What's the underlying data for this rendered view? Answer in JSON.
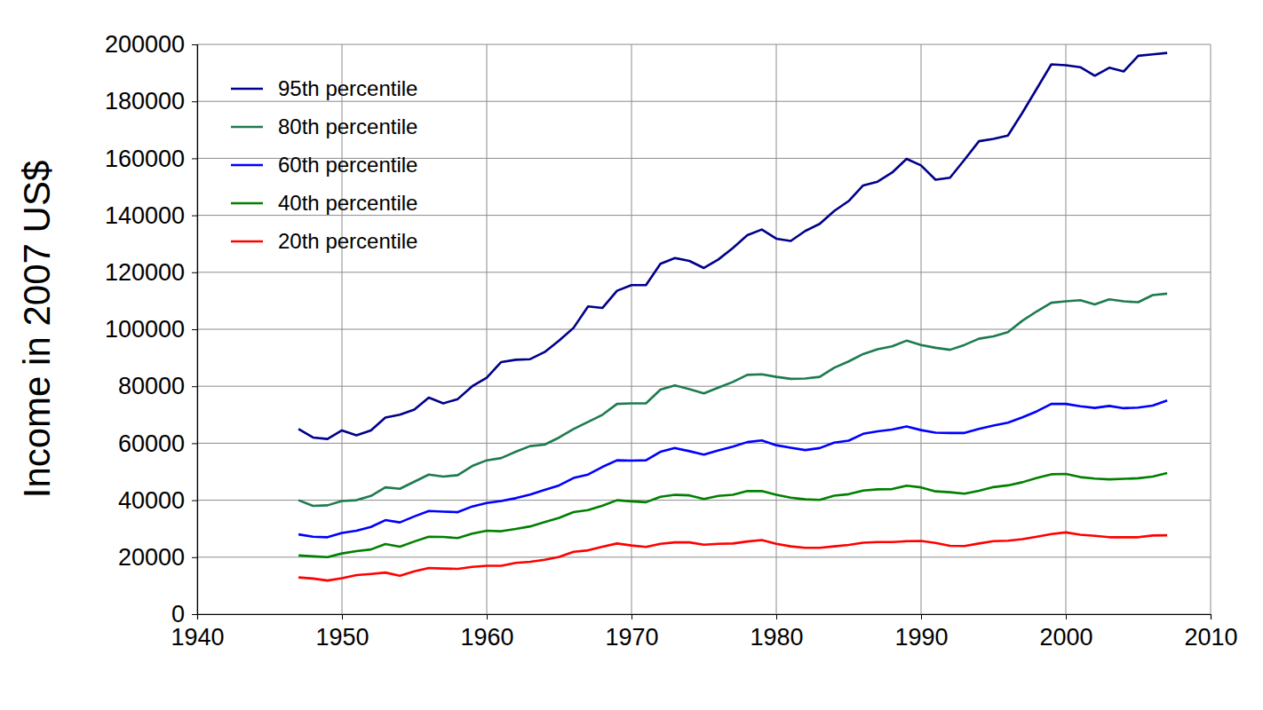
{
  "chart_data": {
    "type": "line",
    "y_label": "Income in 2007 US$",
    "x": [
      1947,
      1948,
      1949,
      1950,
      1951,
      1952,
      1953,
      1954,
      1955,
      1956,
      1957,
      1958,
      1959,
      1960,
      1961,
      1962,
      1963,
      1964,
      1965,
      1966,
      1967,
      1968,
      1969,
      1970,
      1971,
      1972,
      1973,
      1974,
      1975,
      1976,
      1977,
      1978,
      1979,
      1980,
      1981,
      1982,
      1983,
      1984,
      1985,
      1986,
      1987,
      1988,
      1989,
      1990,
      1991,
      1992,
      1993,
      1994,
      1995,
      1996,
      1997,
      1998,
      1999,
      2000,
      2001,
      2002,
      2003,
      2004,
      2005,
      2006,
      2007
    ],
    "series": [
      {
        "name": "95th percentile",
        "color": "#00008b",
        "values": [
          65000,
          62000,
          61500,
          64500,
          62800,
          64500,
          69000,
          70000,
          71800,
          76000,
          74000,
          75500,
          80000,
          83000,
          88500,
          89300,
          89500,
          92000,
          96000,
          100500,
          108000,
          107500,
          113500,
          115500,
          115500,
          123000,
          125000,
          124000,
          121500,
          124500,
          128500,
          133000,
          135000,
          131800,
          131000,
          134500,
          137000,
          141500,
          145000,
          150500,
          151800,
          155000,
          159800,
          157500,
          152500,
          153200,
          159500,
          166000,
          166800,
          168000,
          176000,
          184500,
          193000,
          192700,
          192000,
          189000,
          191800,
          190500,
          196000,
          196500,
          197000
        ]
      },
      {
        "name": "80th percentile",
        "color": "#1e7b4e",
        "values": [
          40000,
          38000,
          38200,
          39700,
          40000,
          41500,
          44500,
          44000,
          46500,
          49000,
          48300,
          48800,
          52000,
          54000,
          54800,
          57000,
          59000,
          59500,
          62000,
          65000,
          67500,
          70000,
          73800,
          74000,
          74000,
          78800,
          80300,
          79000,
          77500,
          79500,
          81500,
          84000,
          84200,
          83300,
          82600,
          82700,
          83300,
          86500,
          88700,
          91300,
          93000,
          94000,
          96000,
          94500,
          93500,
          92800,
          94500,
          96700,
          97500,
          99000,
          103000,
          106300,
          109300,
          109800,
          110200,
          108700,
          110500,
          109800,
          109500,
          112000,
          112500
        ]
      },
      {
        "name": "60th percentile",
        "color": "#0000ff",
        "values": [
          28000,
          27200,
          27000,
          28500,
          29300,
          30600,
          33000,
          32200,
          34300,
          36200,
          36000,
          35800,
          37800,
          39000,
          39700,
          40700,
          42000,
          43600,
          45200,
          47800,
          49000,
          51700,
          54000,
          53900,
          54000,
          57000,
          58300,
          57200,
          56000,
          57500,
          58800,
          60400,
          61000,
          59300,
          58400,
          57600,
          58300,
          60200,
          60900,
          63300,
          64200,
          64800,
          65900,
          64600,
          63700,
          63600,
          63600,
          65000,
          66200,
          67200,
          69100,
          71200,
          73800,
          73800,
          73000,
          72400,
          73100,
          72300,
          72500,
          73200,
          75000
        ]
      },
      {
        "name": "40th percentile",
        "color": "#008000",
        "values": [
          20600,
          20300,
          20000,
          21300,
          22100,
          22700,
          24600,
          23700,
          25500,
          27200,
          27100,
          26700,
          28300,
          29300,
          29100,
          29900,
          30800,
          32300,
          33800,
          35800,
          36500,
          38100,
          40000,
          39600,
          39300,
          41200,
          41900,
          41700,
          40400,
          41500,
          41900,
          43200,
          43200,
          41900,
          40900,
          40300,
          40100,
          41600,
          42100,
          43400,
          43800,
          43900,
          45100,
          44500,
          43100,
          42800,
          42300,
          43300,
          44600,
          45200,
          46300,
          47800,
          49100,
          49200,
          48100,
          47600,
          47300,
          47500,
          47700,
          48300,
          49500
        ]
      },
      {
        "name": "20th percentile",
        "color": "#ff0000",
        "values": [
          12900,
          12500,
          11800,
          12600,
          13700,
          14100,
          14600,
          13500,
          15000,
          16200,
          16000,
          15900,
          16600,
          17000,
          17000,
          18000,
          18400,
          19100,
          20100,
          21900,
          22400,
          23700,
          24800,
          24100,
          23600,
          24700,
          25200,
          25200,
          24400,
          24700,
          24800,
          25500,
          26000,
          24700,
          23800,
          23300,
          23300,
          23800,
          24300,
          25100,
          25300,
          25300,
          25600,
          25700,
          25000,
          24000,
          23900,
          24800,
          25600,
          25800,
          26300,
          27200,
          28100,
          28700,
          27900,
          27500,
          27000,
          27000,
          27000,
          27600,
          27700
        ]
      }
    ],
    "xlim": [
      1940,
      2010
    ],
    "xticks": [
      1940,
      1950,
      1960,
      1970,
      1980,
      1990,
      2000,
      2010
    ],
    "ylim": [
      0,
      200000
    ],
    "yticks": [
      0,
      20000,
      40000,
      60000,
      80000,
      100000,
      120000,
      140000,
      160000,
      180000,
      200000
    ],
    "grid": true,
    "legend": "upper left"
  }
}
